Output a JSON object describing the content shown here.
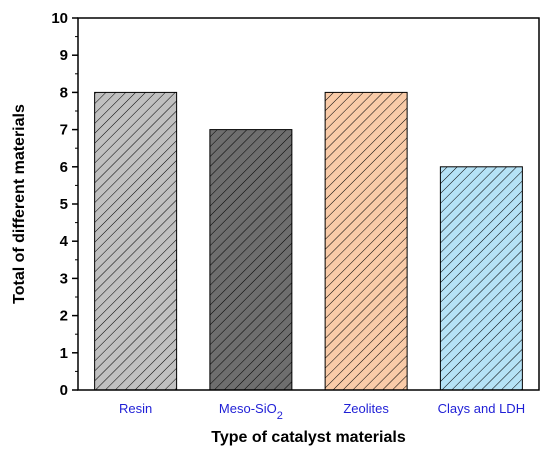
{
  "chart_data": {
    "type": "bar",
    "categories": [
      "Resin",
      "Meso-SiO2",
      "Zeolites",
      "Clays and LDH"
    ],
    "category_display": [
      {
        "main": "Resin",
        "sub": ""
      },
      {
        "main": "Meso-SiO",
        "sub": "2"
      },
      {
        "main": "Zeolites",
        "sub": ""
      },
      {
        "main": "Clays and LDH",
        "sub": ""
      }
    ],
    "values": [
      8,
      7,
      8,
      6
    ],
    "xlabel": "Type of catalyst materials",
    "ylabel": "Total of different materials",
    "ylim": [
      0,
      10
    ],
    "yticks": [
      "0",
      "1",
      "2",
      "3",
      "4",
      "5",
      "6",
      "7",
      "8",
      "9",
      "10"
    ],
    "bar_colors": [
      "#c0c0c0",
      "#6e6e6e",
      "#f9cba8",
      "#b5e2f6"
    ],
    "bar_pattern": "diagonal-hatch",
    "category_label_color": "#1f1fd6",
    "grid": false
  }
}
